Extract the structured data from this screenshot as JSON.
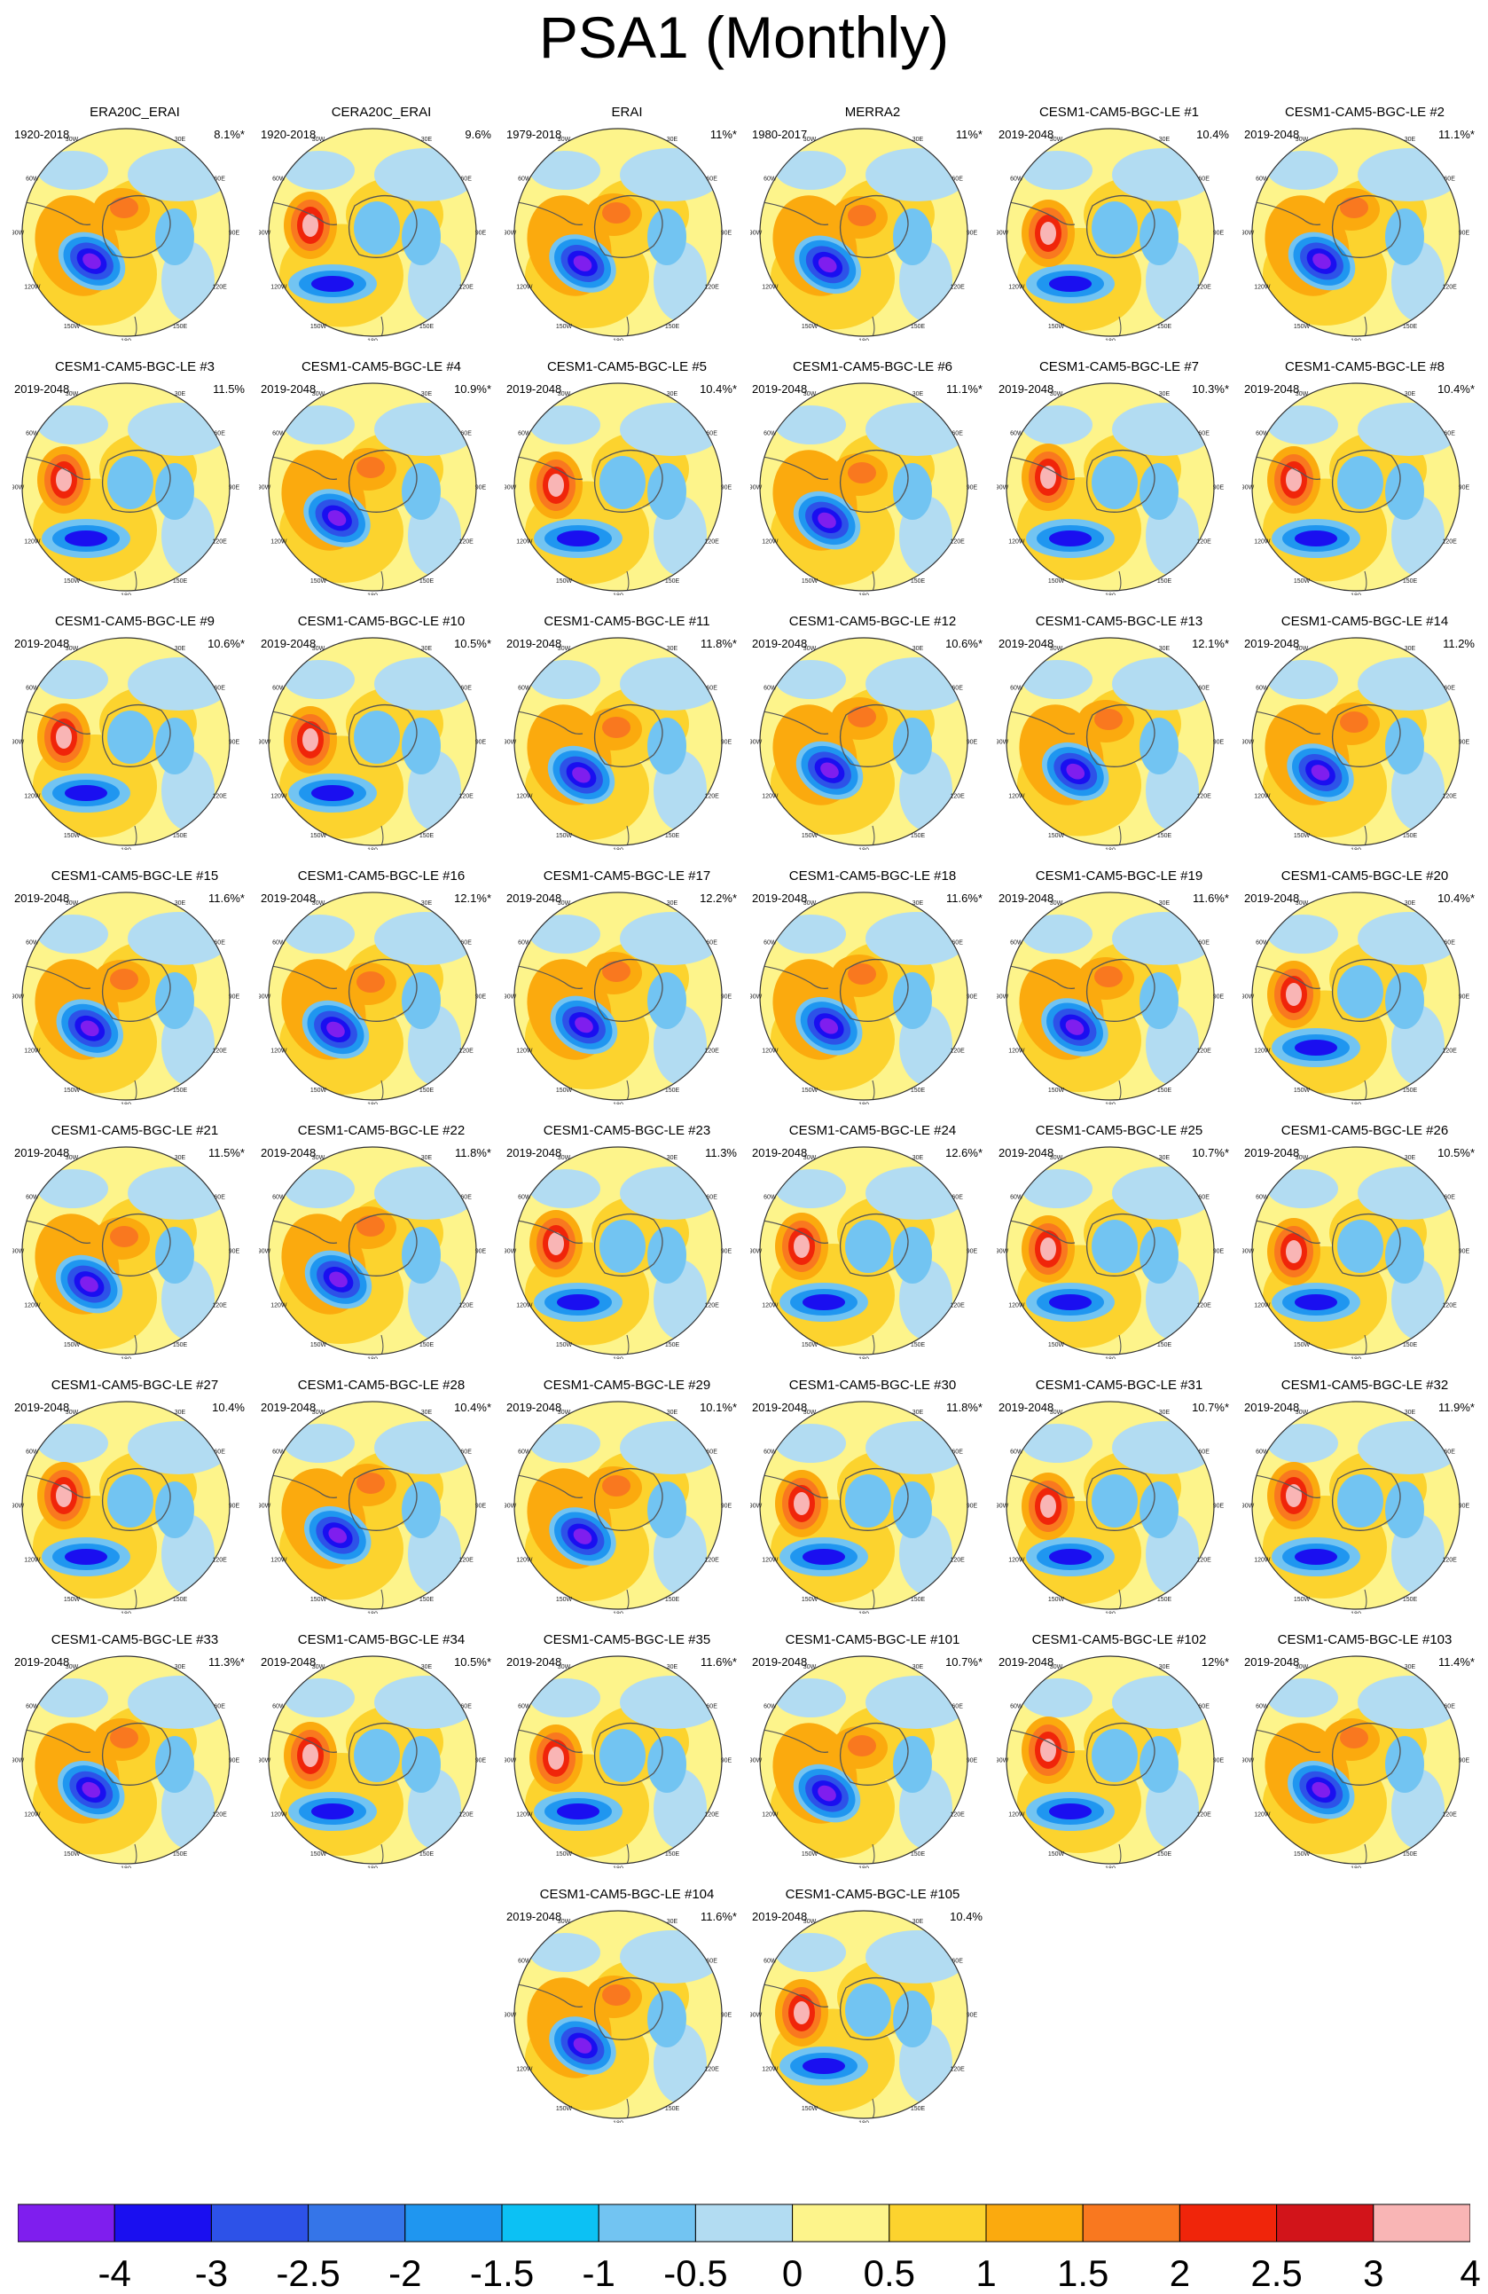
{
  "title": "PSA1 (Monthly)",
  "colorbar": {
    "colors": [
      "#7f1eee",
      "#1a0ff0",
      "#2d52e8",
      "#3575e8",
      "#1f96f0",
      "#0cc1f4",
      "#72c4f2",
      "#b2dcf2",
      "#fdf48b",
      "#fcd32e",
      "#fbaa0e",
      "#f9781f",
      "#f0250a",
      "#d2141a",
      "#f9b5b5"
    ],
    "labels": [
      "-4",
      "-3",
      "-2.5",
      "-2",
      "-1.5",
      "-1",
      "-0.5",
      "0",
      "0.5",
      "1",
      "1.5",
      "2",
      "2.5",
      "3",
      "4"
    ]
  },
  "map_labels": {
    "top": "0",
    "right": "90E",
    "bottom": "180",
    "left": "90W",
    "ul": "60W",
    "ur": "60E",
    "ll": "120W",
    "lr": "120E",
    "bl": "150W",
    "br": "150E",
    "tl": "30W",
    "tr": "30E"
  },
  "panels": [
    {
      "title": "ERA20C_ERAI",
      "period": "1920-2018",
      "pct": "8.1%*",
      "pattern": "A"
    },
    {
      "title": "CERA20C_ERAI",
      "period": "1920-2018",
      "pct": "9.6%",
      "pattern": "C"
    },
    {
      "title": "ERAI",
      "period": "1979-2018",
      "pct": "11%*",
      "pattern": "A"
    },
    {
      "title": "MERRA2",
      "period": "1980-2017",
      "pct": "11%*",
      "pattern": "A"
    },
    {
      "title": "CESM1-CAM5-BGC-LE #1",
      "period": "2019-2048",
      "pct": "10.4%",
      "pattern": "B"
    },
    {
      "title": "CESM1-CAM5-BGC-LE #2",
      "period": "2019-2048",
      "pct": "11.1%*",
      "pattern": "A"
    },
    {
      "title": "CESM1-CAM5-BGC-LE #3",
      "period": "2019-2048",
      "pct": "11.5%",
      "pattern": "B"
    },
    {
      "title": "CESM1-CAM5-BGC-LE #4",
      "period": "2019-2048",
      "pct": "10.9%*",
      "pattern": "A"
    },
    {
      "title": "CESM1-CAM5-BGC-LE #5",
      "period": "2019-2048",
      "pct": "10.4%*",
      "pattern": "B"
    },
    {
      "title": "CESM1-CAM5-BGC-LE #6",
      "period": "2019-2048",
      "pct": "11.1%*",
      "pattern": "A"
    },
    {
      "title": "CESM1-CAM5-BGC-LE #7",
      "period": "2019-2048",
      "pct": "10.3%*",
      "pattern": "B"
    },
    {
      "title": "CESM1-CAM5-BGC-LE #8",
      "period": "2019-2048",
      "pct": "10.4%*",
      "pattern": "B"
    },
    {
      "title": "CESM1-CAM5-BGC-LE #9",
      "period": "2019-2048",
      "pct": "10.6%*",
      "pattern": "B"
    },
    {
      "title": "CESM1-CAM5-BGC-LE #10",
      "period": "2019-2048",
      "pct": "10.5%*",
      "pattern": "B"
    },
    {
      "title": "CESM1-CAM5-BGC-LE #11",
      "period": "2019-2048",
      "pct": "11.8%*",
      "pattern": "A"
    },
    {
      "title": "CESM1-CAM5-BGC-LE #12",
      "period": "2019-2048",
      "pct": "10.6%*",
      "pattern": "A"
    },
    {
      "title": "CESM1-CAM5-BGC-LE #13",
      "period": "2019-2048",
      "pct": "12.1%*",
      "pattern": "A"
    },
    {
      "title": "CESM1-CAM5-BGC-LE #14",
      "period": "2019-2048",
      "pct": "11.2%",
      "pattern": "A"
    },
    {
      "title": "CESM1-CAM5-BGC-LE #15",
      "period": "2019-2048",
      "pct": "11.6%*",
      "pattern": "A"
    },
    {
      "title": "CESM1-CAM5-BGC-LE #16",
      "period": "2019-2048",
      "pct": "12.1%*",
      "pattern": "A"
    },
    {
      "title": "CESM1-CAM5-BGC-LE #17",
      "period": "2019-2048",
      "pct": "12.2%*",
      "pattern": "A"
    },
    {
      "title": "CESM1-CAM5-BGC-LE #18",
      "period": "2019-2048",
      "pct": "11.6%*",
      "pattern": "A"
    },
    {
      "title": "CESM1-CAM5-BGC-LE #19",
      "period": "2019-2048",
      "pct": "11.6%*",
      "pattern": "A"
    },
    {
      "title": "CESM1-CAM5-BGC-LE #20",
      "period": "2019-2048",
      "pct": "10.4%*",
      "pattern": "B"
    },
    {
      "title": "CESM1-CAM5-BGC-LE #21",
      "period": "2019-2048",
      "pct": "11.5%*",
      "pattern": "A"
    },
    {
      "title": "CESM1-CAM5-BGC-LE #22",
      "period": "2019-2048",
      "pct": "11.8%*",
      "pattern": "A"
    },
    {
      "title": "CESM1-CAM5-BGC-LE #23",
      "period": "2019-2048",
      "pct": "11.3%",
      "pattern": "B"
    },
    {
      "title": "CESM1-CAM5-BGC-LE #24",
      "period": "2019-2048",
      "pct": "12.6%*",
      "pattern": "B"
    },
    {
      "title": "CESM1-CAM5-BGC-LE #25",
      "period": "2019-2048",
      "pct": "10.7%*",
      "pattern": "B"
    },
    {
      "title": "CESM1-CAM5-BGC-LE #26",
      "period": "2019-2048",
      "pct": "10.5%*",
      "pattern": "B"
    },
    {
      "title": "CESM1-CAM5-BGC-LE #27",
      "period": "2019-2048",
      "pct": "10.4%",
      "pattern": "B"
    },
    {
      "title": "CESM1-CAM5-BGC-LE #28",
      "period": "2019-2048",
      "pct": "10.4%*",
      "pattern": "A"
    },
    {
      "title": "CESM1-CAM5-BGC-LE #29",
      "period": "2019-2048",
      "pct": "10.1%*",
      "pattern": "A"
    },
    {
      "title": "CESM1-CAM5-BGC-LE #30",
      "period": "2019-2048",
      "pct": "11.8%*",
      "pattern": "B"
    },
    {
      "title": "CESM1-CAM5-BGC-LE #31",
      "period": "2019-2048",
      "pct": "10.7%*",
      "pattern": "B"
    },
    {
      "title": "CESM1-CAM5-BGC-LE #32",
      "period": "2019-2048",
      "pct": "11.9%*",
      "pattern": "B"
    },
    {
      "title": "CESM1-CAM5-BGC-LE #33",
      "period": "2019-2048",
      "pct": "11.3%*",
      "pattern": "A"
    },
    {
      "title": "CESM1-CAM5-BGC-LE #34",
      "period": "2019-2048",
      "pct": "10.5%*",
      "pattern": "B"
    },
    {
      "title": "CESM1-CAM5-BGC-LE #35",
      "period": "2019-2048",
      "pct": "11.6%*",
      "pattern": "B"
    },
    {
      "title": "CESM1-CAM5-BGC-LE #101",
      "period": "2019-2048",
      "pct": "10.7%*",
      "pattern": "A"
    },
    {
      "title": "CESM1-CAM5-BGC-LE #102",
      "period": "2019-2048",
      "pct": "12%*",
      "pattern": "B"
    },
    {
      "title": "CESM1-CAM5-BGC-LE #103",
      "period": "2019-2048",
      "pct": "11.4%*",
      "pattern": "A"
    },
    {
      "title": "CESM1-CAM5-BGC-LE #104",
      "period": "2019-2048",
      "pct": "11.6%*",
      "pattern": "A"
    },
    {
      "title": "CESM1-CAM5-BGC-LE #105",
      "period": "2019-2048",
      "pct": "10.4%",
      "pattern": "B"
    }
  ]
}
